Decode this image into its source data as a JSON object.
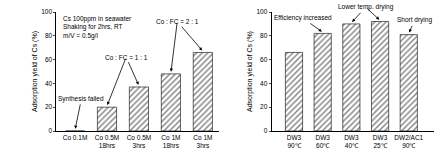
{
  "chart_data": [
    {
      "type": "bar",
      "categories": [
        "Co 0.1M",
        "Co 0.5M\n18hrs",
        "Co 0.5M\n3hrs",
        "Co 1M\n18hrs",
        "Co 1M\n3hrs"
      ],
      "values": [
        0,
        20,
        37,
        48,
        66
      ],
      "color": "#808080",
      "ylabel": "Adsorption yield of Cs (%)",
      "ylim": [
        0,
        100
      ],
      "yticks": [
        0,
        20,
        40,
        60,
        80,
        100
      ],
      "annotations": [
        "Cs 100ppm in seawater\nShaking for 2hrs, RT\nm/V = 0.5g/l",
        "Synthesis failed",
        "Co : FC = 1 : 1",
        "Co : FC = 2 : 1"
      ]
    },
    {
      "type": "bar",
      "categories": [
        "DW3\n90℃",
        "DW3\n60℃",
        "DW3\n40℃",
        "DW3\n25℃",
        "DW2/AC1\n90℃"
      ],
      "values": [
        66,
        82,
        90,
        92,
        81
      ],
      "color": "#808080",
      "ylabel": "Adsorption yield of Cs (%)",
      "ylim": [
        0,
        100
      ],
      "yticks": [
        0,
        20,
        40,
        60,
        80,
        100
      ],
      "annotations": [
        "Efficiency increased",
        "Lower temp. drying",
        "Short drying"
      ]
    }
  ]
}
